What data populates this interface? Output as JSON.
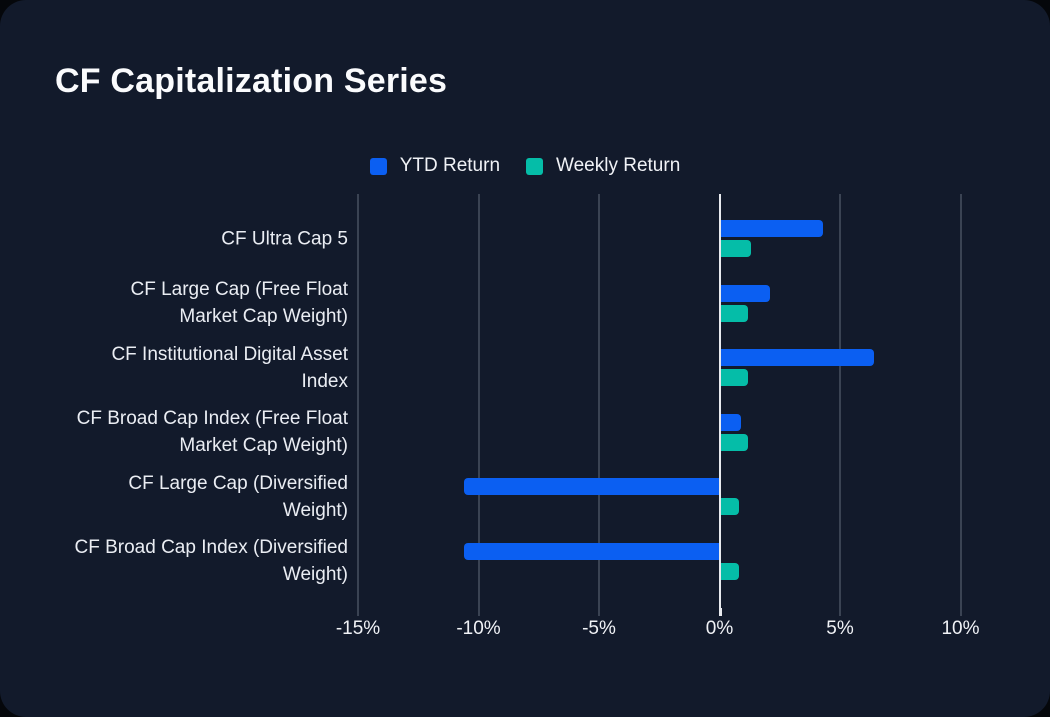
{
  "page": {
    "background": "#05070b",
    "card_background": "#121a2b"
  },
  "chart_data": {
    "type": "bar",
    "orientation": "horizontal",
    "title": "CF Capitalization Series",
    "categories": [
      "CF Ultra Cap 5",
      "CF Large Cap (Free Float Market Cap Weight)",
      "CF Institutional Digital Asset Index",
      "CF Broad Cap Index (Free Float Market Cap Weight)",
      "CF Large Cap (Diversified Weight)",
      "CF Broad Cap Index (Diversified Weight)"
    ],
    "series": [
      {
        "name": "YTD Return",
        "color": "#0b5ff2",
        "values": [
          4.3,
          2.1,
          6.4,
          0.9,
          -10.6,
          -10.6
        ]
      },
      {
        "name": "Weekly Return",
        "color": "#05bda8",
        "values": [
          1.3,
          1.2,
          1.2,
          1.2,
          0.8,
          0.8
        ]
      }
    ],
    "xticks": [
      -15,
      -10,
      -5,
      0,
      5,
      10
    ],
    "xtick_labels": [
      "-15%",
      "-10%",
      "-5%",
      "0%",
      "5%",
      "10%"
    ],
    "xlim": [
      -15.8,
      11.1
    ],
    "unit": "%",
    "grid": "vertical",
    "legend_position": "top-center",
    "colors": {
      "gridline": "#3a4353",
      "zero_line": "#e8eaee",
      "label_text": "#eaedf3",
      "axis_text": "#f0f2f6",
      "title_text": "#fafbfd"
    }
  }
}
